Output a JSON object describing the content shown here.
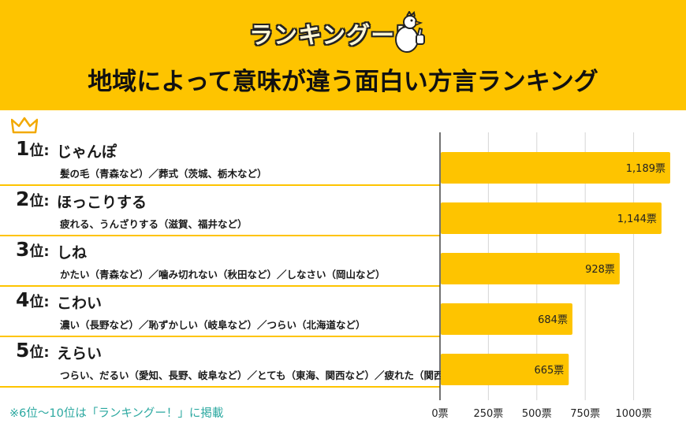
{
  "logo": {
    "text": "ランキングー!"
  },
  "title": "地域によって意味が違う面白い方言ランキング",
  "rank_unit": "位:",
  "rankings": [
    {
      "rank": "1",
      "word": "じゃんぽ",
      "meaning": "髪の毛（青森など）／葬式（茨城、栃木など）"
    },
    {
      "rank": "2",
      "word": "ほっこりする",
      "meaning": "疲れる、うんざりする（滋賀、福井など）"
    },
    {
      "rank": "3",
      "word": "しね",
      "meaning": "かたい（青森など）／噛み切れない（秋田など）／しなさい（岡山など）"
    },
    {
      "rank": "4",
      "word": "こわい",
      "meaning": "濃い（長野など）／恥ずかしい（岐阜など）／つらい（北海道など）"
    },
    {
      "rank": "5",
      "word": "えらい",
      "meaning": "つらい、だるい（愛知、長野、岐阜など）／とても（東海、関西など）／疲れた（関西など）"
    }
  ],
  "chart_data": {
    "type": "bar",
    "orientation": "horizontal",
    "categories": [
      "じゃんぽ",
      "ほっこりする",
      "しね",
      "こわい",
      "えらい"
    ],
    "values": [
      1189,
      1144,
      928,
      684,
      665
    ],
    "value_labels": [
      "1,189票",
      "1,144票",
      "928票",
      "684票",
      "665票"
    ],
    "xlim": [
      0,
      1189
    ],
    "ticks": [
      0,
      250,
      500,
      750,
      1000
    ],
    "tick_labels": [
      "0票",
      "250票",
      "500票",
      "750票",
      "1000票"
    ],
    "grid": true,
    "bar_color": "#fec400"
  },
  "footnote": "※6位〜10位は「ランキングー！」に掲載",
  "colors": {
    "accent": "#fec400",
    "footnote": "#2ba8a0",
    "grid": "#d6d6d6"
  }
}
